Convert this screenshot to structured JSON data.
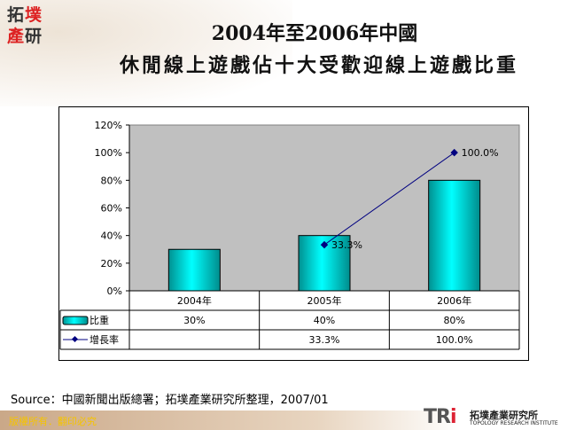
{
  "logo": {
    "chars": [
      "拓",
      "墣",
      "產",
      "研"
    ]
  },
  "title": {
    "line1": "2004年至2006年中國",
    "line2": "休閒線上遊戲佔十大受歡迎線上遊戲比重"
  },
  "chart_data": {
    "type": "bar+line",
    "categories": [
      "2004年",
      "2005年",
      "2006年"
    ],
    "yticks": [
      "0%",
      "20%",
      "40%",
      "60%",
      "80%",
      "100%",
      "120%"
    ],
    "ylim": [
      0,
      120
    ],
    "series": [
      {
        "name": "比重",
        "type": "bar",
        "values": [
          30,
          40,
          80
        ],
        "labels": [
          "30%",
          "40%",
          "80%"
        ],
        "color": "#00d8d8"
      },
      {
        "name": "增長率",
        "type": "line",
        "values": [
          null,
          33.3,
          100.0
        ],
        "labels": [
          "",
          "33.3%",
          "100.0%"
        ],
        "color": "#000080"
      }
    ],
    "plot_bg": "#c0c0c0",
    "legend": "data-table"
  },
  "source": "Source：中國新聞出版總署；拓墣產業研究所整理，2007/01",
  "footer": {
    "copyright": "版權所有．翻印必究",
    "brand_logo": "TRi",
    "brand_cn": "拓墣產業研究所",
    "brand_en": "TOPOLOGY RESEARCH INSTITUTE"
  }
}
